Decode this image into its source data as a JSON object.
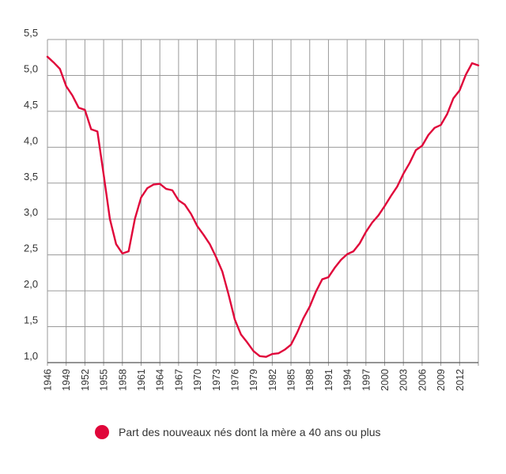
{
  "chart_data": {
    "type": "line",
    "title": "",
    "xlabel": "",
    "ylabel": "",
    "x": [
      1946,
      1947,
      1948,
      1949,
      1950,
      1951,
      1952,
      1953,
      1954,
      1955,
      1956,
      1957,
      1958,
      1959,
      1960,
      1961,
      1962,
      1963,
      1964,
      1965,
      1966,
      1967,
      1968,
      1969,
      1970,
      1971,
      1972,
      1973,
      1974,
      1975,
      1976,
      1977,
      1978,
      1979,
      1980,
      1981,
      1982,
      1983,
      1984,
      1985,
      1986,
      1987,
      1988,
      1989,
      1990,
      1991,
      1992,
      1993,
      1994,
      1995,
      1996,
      1997,
      1998,
      1999,
      2000,
      2001,
      2002,
      2003,
      2004,
      2005,
      2006,
      2007,
      2008,
      2009,
      2010,
      2011,
      2012,
      2013,
      2014,
      2015
    ],
    "x_tick_labels": [
      "1946",
      "1949",
      "1952",
      "1955",
      "1958",
      "1961",
      "1964",
      "1967",
      "1970",
      "1973",
      "1976",
      "1979",
      "1982",
      "1985",
      "1988",
      "1991",
      "1994",
      "1997",
      "2000",
      "2003",
      "2006",
      "2009",
      "2012"
    ],
    "y_tick_labels": [
      "1,0",
      "1,5",
      "2,0",
      "2,5",
      "3,0",
      "3,5",
      "4,0",
      "4,5",
      "5,0",
      "5,5"
    ],
    "ylim": [
      1.0,
      5.5
    ],
    "xlim": [
      1946,
      2015
    ],
    "grid": true,
    "legend_position": "bottom",
    "color": "#e0063a",
    "series": [
      {
        "name": "Part des nouveaux nés dont la mère a 40 ans ou plus",
        "values": [
          5.26,
          5.18,
          5.09,
          4.85,
          4.72,
          4.55,
          4.52,
          4.25,
          4.22,
          3.62,
          3.0,
          2.65,
          2.52,
          2.55,
          3.0,
          3.3,
          3.43,
          3.48,
          3.49,
          3.42,
          3.4,
          3.26,
          3.2,
          3.07,
          2.9,
          2.78,
          2.65,
          2.47,
          2.27,
          1.95,
          1.6,
          1.39,
          1.28,
          1.16,
          1.09,
          1.08,
          1.12,
          1.13,
          1.18,
          1.25,
          1.42,
          1.62,
          1.78,
          1.99,
          2.16,
          2.19,
          2.32,
          2.43,
          2.51,
          2.55,
          2.66,
          2.82,
          2.95,
          3.05,
          3.18,
          3.32,
          3.45,
          3.63,
          3.78,
          3.96,
          4.02,
          4.17,
          4.27,
          4.31,
          4.46,
          4.68,
          4.79,
          5.01,
          5.17,
          5.14
        ]
      }
    ]
  }
}
